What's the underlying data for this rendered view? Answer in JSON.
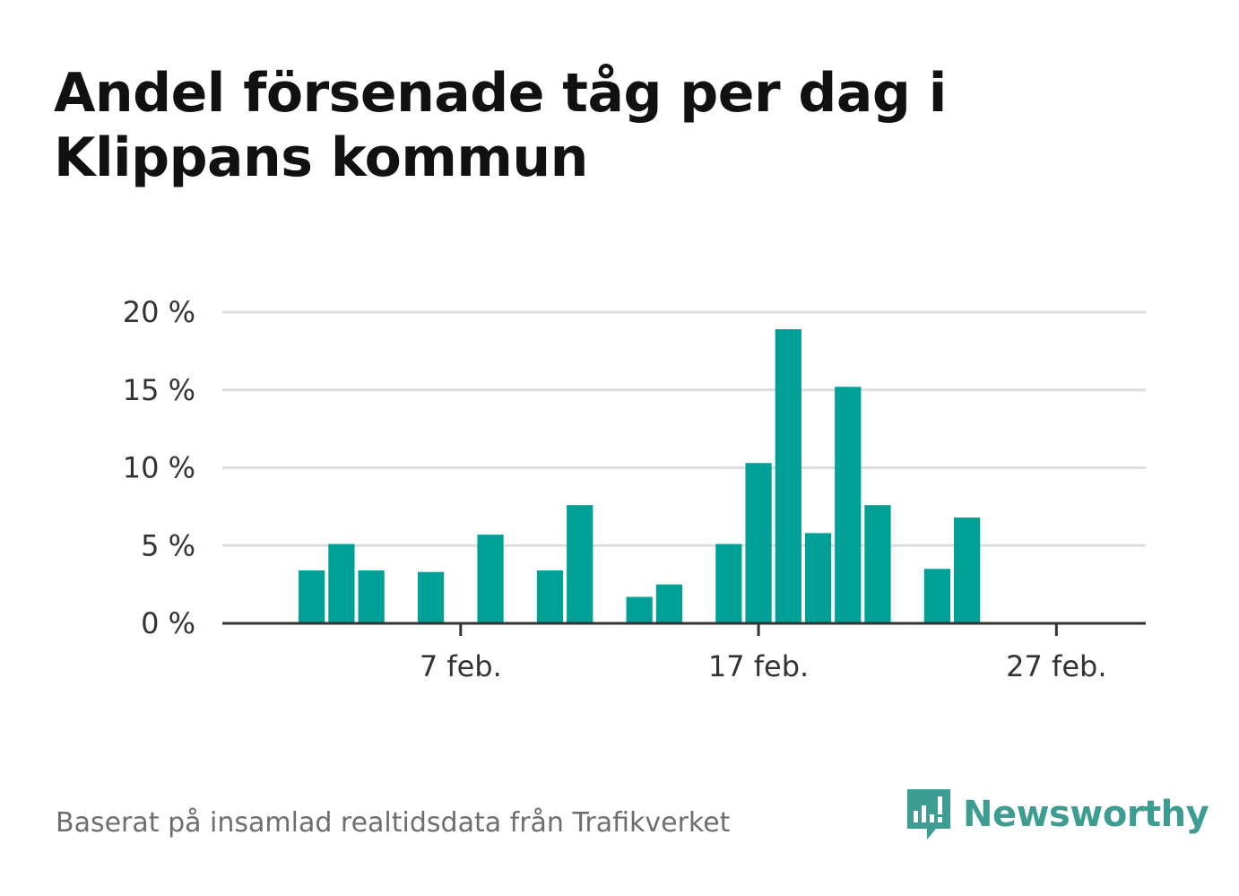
{
  "title": "Andel försenade tåg per dag i Klippans kommun",
  "footer": "Baserat på insamlad realtidsdata från Trafikverket",
  "brand": {
    "name": "Newsworthy",
    "icon": "newsworthy-logo-icon",
    "color": "#3e9d93"
  },
  "colors": {
    "bar": "#00a096",
    "grid": "#dddddd",
    "axis": "#333333",
    "tick_text": "#333333"
  },
  "chart_data": {
    "type": "bar",
    "title": "Andel försenade tåg per dag i Klippans kommun",
    "xlabel": "",
    "ylabel": "",
    "x_range": [
      "2021-01-30",
      "2021-03-02"
    ],
    "ylim": [
      0,
      20
    ],
    "yticks": [
      0,
      5,
      10,
      15,
      20
    ],
    "ytick_labels": [
      "0 %",
      "5 %",
      "10 %",
      "15 %",
      "20 %"
    ],
    "xticks": [
      "2021-02-07",
      "2021-02-17",
      "2021-02-27"
    ],
    "xtick_labels": [
      "7 feb.",
      "17 feb.",
      "27 feb."
    ],
    "grid": true,
    "legend": "none",
    "series": [
      {
        "dates": [
          "2021-02-02",
          "2021-02-03",
          "2021-02-04",
          "2021-02-06",
          "2021-02-08",
          "2021-02-10",
          "2021-02-11",
          "2021-02-13",
          "2021-02-14",
          "2021-02-16",
          "2021-02-17",
          "2021-02-18",
          "2021-02-19",
          "2021-02-20",
          "2021-02-21",
          "2021-02-23",
          "2021-02-24"
        ],
        "values": [
          3.4,
          5.1,
          3.4,
          3.3,
          5.7,
          3.4,
          7.6,
          1.7,
          2.5,
          5.1,
          10.3,
          18.9,
          5.8,
          15.2,
          7.6,
          3.5,
          6.8
        ]
      }
    ]
  }
}
